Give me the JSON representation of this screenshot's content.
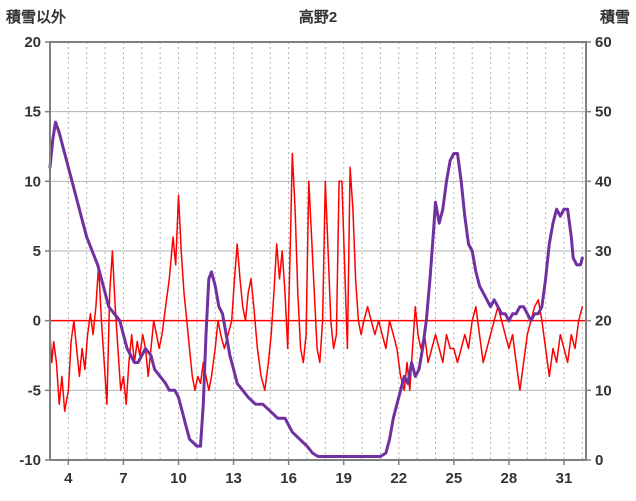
{
  "title": "高野2",
  "left_axis": {
    "label": "積雪以外",
    "ticks": [
      20,
      15,
      10,
      5,
      0,
      -5,
      -10
    ]
  },
  "right_axis": {
    "label": "積雪",
    "ticks": [
      60,
      50,
      40,
      30,
      20,
      10,
      0
    ]
  },
  "x_axis": {
    "ticks": [
      4,
      7,
      10,
      13,
      16,
      19,
      22,
      25,
      28,
      31
    ]
  },
  "colors": {
    "grid": "#b3b3b3",
    "frame": "#808080",
    "zero_line": "#ff0000",
    "red_series": "#ff0000",
    "purple_series": "#7030a0",
    "tick_text": "#333333"
  },
  "chart_data": {
    "type": "line",
    "title": "高野2",
    "xlim": [
      3,
      32.2
    ],
    "left_ylim": [
      -10,
      20
    ],
    "right_ylim": [
      0,
      60
    ],
    "grid": true,
    "legend": "none",
    "xlabel": "",
    "left_ylabel": "積雪以外",
    "right_ylabel": "積雪",
    "series": [
      {
        "name": "積雪以外",
        "axis": "left",
        "color": "#ff0000",
        "width": 1.5,
        "points": [
          [
            3,
            -1
          ],
          [
            3.1,
            -3
          ],
          [
            3.2,
            -1.5
          ],
          [
            3.35,
            -3
          ],
          [
            3.5,
            -6
          ],
          [
            3.65,
            -4
          ],
          [
            3.8,
            -6.5
          ],
          [
            4,
            -5
          ],
          [
            4.15,
            -1.5
          ],
          [
            4.3,
            0
          ],
          [
            4.45,
            -2
          ],
          [
            4.6,
            -4
          ],
          [
            4.75,
            -2
          ],
          [
            4.9,
            -3.5
          ],
          [
            5.05,
            -1
          ],
          [
            5.2,
            0.5
          ],
          [
            5.35,
            -1
          ],
          [
            5.5,
            1
          ],
          [
            5.65,
            4
          ],
          [
            5.8,
            0
          ],
          [
            5.95,
            -3
          ],
          [
            6.1,
            -6
          ],
          [
            6.25,
            2
          ],
          [
            6.4,
            5
          ],
          [
            6.55,
            1
          ],
          [
            6.7,
            -2
          ],
          [
            6.85,
            -5
          ],
          [
            7,
            -4
          ],
          [
            7.15,
            -6
          ],
          [
            7.3,
            -3
          ],
          [
            7.45,
            -1
          ],
          [
            7.6,
            -3
          ],
          [
            7.75,
            -1.5
          ],
          [
            7.9,
            -2.5
          ],
          [
            8.05,
            -1
          ],
          [
            8.2,
            -2
          ],
          [
            8.35,
            -4
          ],
          [
            8.5,
            -2
          ],
          [
            8.65,
            0
          ],
          [
            8.8,
            -1
          ],
          [
            8.95,
            -2
          ],
          [
            9.1,
            -1
          ],
          [
            9.3,
            1
          ],
          [
            9.5,
            3
          ],
          [
            9.7,
            6
          ],
          [
            9.85,
            4
          ],
          [
            10,
            9
          ],
          [
            10.15,
            5
          ],
          [
            10.3,
            2
          ],
          [
            10.45,
            0
          ],
          [
            10.6,
            -2
          ],
          [
            10.75,
            -4
          ],
          [
            10.9,
            -5
          ],
          [
            11.05,
            -4
          ],
          [
            11.2,
            -4.5
          ],
          [
            11.35,
            -3
          ],
          [
            11.5,
            -4
          ],
          [
            11.65,
            -5
          ],
          [
            11.8,
            -4
          ],
          [
            12,
            -2
          ],
          [
            12.15,
            0
          ],
          [
            12.3,
            -1
          ],
          [
            12.5,
            -2
          ],
          [
            12.7,
            -1
          ],
          [
            12.9,
            0
          ],
          [
            13.05,
            3
          ],
          [
            13.2,
            5.5
          ],
          [
            13.35,
            3
          ],
          [
            13.5,
            1
          ],
          [
            13.65,
            0
          ],
          [
            13.8,
            2
          ],
          [
            13.95,
            3
          ],
          [
            14.1,
            1
          ],
          [
            14.3,
            -2
          ],
          [
            14.5,
            -4
          ],
          [
            14.7,
            -5
          ],
          [
            14.9,
            -3
          ],
          [
            15.05,
            -1
          ],
          [
            15.2,
            2
          ],
          [
            15.35,
            5.5
          ],
          [
            15.5,
            3
          ],
          [
            15.65,
            5
          ],
          [
            15.8,
            2
          ],
          [
            15.95,
            -2
          ],
          [
            16.1,
            6
          ],
          [
            16.2,
            12
          ],
          [
            16.35,
            8
          ],
          [
            16.5,
            2
          ],
          [
            16.65,
            -2
          ],
          [
            16.8,
            -3
          ],
          [
            16.95,
            -1
          ],
          [
            17.1,
            10
          ],
          [
            17.25,
            6
          ],
          [
            17.4,
            2
          ],
          [
            17.55,
            -2
          ],
          [
            17.7,
            -3
          ],
          [
            17.85,
            0
          ],
          [
            18,
            10
          ],
          [
            18.15,
            5
          ],
          [
            18.3,
            0
          ],
          [
            18.45,
            -2
          ],
          [
            18.6,
            -1
          ],
          [
            18.75,
            10
          ],
          [
            18.9,
            10
          ],
          [
            19.05,
            4
          ],
          [
            19.2,
            -2
          ],
          [
            19.35,
            11
          ],
          [
            19.5,
            8
          ],
          [
            19.65,
            3
          ],
          [
            19.8,
            0
          ],
          [
            19.95,
            -1
          ],
          [
            20.1,
            0
          ],
          [
            20.3,
            1
          ],
          [
            20.5,
            0
          ],
          [
            20.7,
            -1
          ],
          [
            20.9,
            0
          ],
          [
            21.1,
            -1
          ],
          [
            21.3,
            -2
          ],
          [
            21.5,
            0
          ],
          [
            21.7,
            -1
          ],
          [
            21.9,
            -2
          ],
          [
            22.1,
            -4
          ],
          [
            22.3,
            -5
          ],
          [
            22.45,
            -3
          ],
          [
            22.6,
            -5
          ],
          [
            22.75,
            -2
          ],
          [
            22.9,
            1
          ],
          [
            23.05,
            -1
          ],
          [
            23.2,
            -2
          ],
          [
            23.4,
            -1
          ],
          [
            23.6,
            -3
          ],
          [
            23.8,
            -2
          ],
          [
            24,
            -1
          ],
          [
            24.2,
            -2
          ],
          [
            24.4,
            -3
          ],
          [
            24.6,
            -1
          ],
          [
            24.8,
            -2
          ],
          [
            25,
            -2
          ],
          [
            25.2,
            -3
          ],
          [
            25.4,
            -2
          ],
          [
            25.6,
            -1
          ],
          [
            25.8,
            -2
          ],
          [
            26,
            0
          ],
          [
            26.2,
            1
          ],
          [
            26.4,
            -1
          ],
          [
            26.6,
            -3
          ],
          [
            26.8,
            -2
          ],
          [
            27,
            -1
          ],
          [
            27.2,
            0
          ],
          [
            27.4,
            1
          ],
          [
            27.6,
            0
          ],
          [
            27.8,
            -1
          ],
          [
            28,
            -2
          ],
          [
            28.2,
            -1
          ],
          [
            28.4,
            -3
          ],
          [
            28.6,
            -5
          ],
          [
            28.8,
            -3
          ],
          [
            29,
            -1
          ],
          [
            29.2,
            0
          ],
          [
            29.4,
            1
          ],
          [
            29.6,
            1.5
          ],
          [
            29.8,
            0
          ],
          [
            30,
            -2
          ],
          [
            30.2,
            -4
          ],
          [
            30.4,
            -2
          ],
          [
            30.6,
            -3
          ],
          [
            30.8,
            -1
          ],
          [
            31,
            -2
          ],
          [
            31.2,
            -3
          ],
          [
            31.4,
            -1
          ],
          [
            31.6,
            -2
          ],
          [
            31.8,
            0
          ],
          [
            32,
            1
          ]
        ]
      },
      {
        "name": "積雪",
        "axis": "right",
        "color": "#7030a0",
        "width": 3,
        "points": [
          [
            3,
            42
          ],
          [
            3.15,
            46
          ],
          [
            3.3,
            48.5
          ],
          [
            3.5,
            47
          ],
          [
            3.8,
            44
          ],
          [
            4.1,
            41
          ],
          [
            4.4,
            38
          ],
          [
            4.7,
            35
          ],
          [
            5,
            32
          ],
          [
            5.3,
            30
          ],
          [
            5.6,
            28
          ],
          [
            5.8,
            26
          ],
          [
            6,
            24
          ],
          [
            6.2,
            22
          ],
          [
            6.5,
            21
          ],
          [
            6.8,
            20
          ],
          [
            7,
            18
          ],
          [
            7.2,
            16
          ],
          [
            7.4,
            15
          ],
          [
            7.6,
            14
          ],
          [
            7.8,
            14
          ],
          [
            8,
            15
          ],
          [
            8.2,
            16
          ],
          [
            8.5,
            15
          ],
          [
            8.7,
            13
          ],
          [
            9,
            12
          ],
          [
            9.3,
            11
          ],
          [
            9.5,
            10
          ],
          [
            9.8,
            10
          ],
          [
            10,
            9
          ],
          [
            10.2,
            7
          ],
          [
            10.4,
            5
          ],
          [
            10.6,
            3
          ],
          [
            10.8,
            2.5
          ],
          [
            11,
            2
          ],
          [
            11.2,
            2
          ],
          [
            11.35,
            8
          ],
          [
            11.5,
            18
          ],
          [
            11.65,
            26
          ],
          [
            11.8,
            27
          ],
          [
            12,
            25
          ],
          [
            12.2,
            22
          ],
          [
            12.4,
            21
          ],
          [
            12.6,
            18
          ],
          [
            12.8,
            15
          ],
          [
            13,
            13
          ],
          [
            13.2,
            11
          ],
          [
            13.5,
            10
          ],
          [
            13.8,
            9
          ],
          [
            14.2,
            8
          ],
          [
            14.6,
            8
          ],
          [
            15,
            7
          ],
          [
            15.4,
            6
          ],
          [
            15.8,
            6
          ],
          [
            16.2,
            4
          ],
          [
            16.6,
            3
          ],
          [
            17,
            2
          ],
          [
            17.3,
            1
          ],
          [
            17.6,
            0.5
          ],
          [
            18,
            0.5
          ],
          [
            18.5,
            0.5
          ],
          [
            19,
            0.5
          ],
          [
            19.5,
            0.5
          ],
          [
            20,
            0.5
          ],
          [
            20.5,
            0.5
          ],
          [
            21,
            0.5
          ],
          [
            21.3,
            1
          ],
          [
            21.5,
            3
          ],
          [
            21.7,
            6
          ],
          [
            21.9,
            8
          ],
          [
            22.1,
            10
          ],
          [
            22.3,
            12
          ],
          [
            22.5,
            11
          ],
          [
            22.7,
            14
          ],
          [
            22.9,
            12
          ],
          [
            23.1,
            13
          ],
          [
            23.3,
            16
          ],
          [
            23.5,
            20
          ],
          [
            23.7,
            26
          ],
          [
            23.9,
            33
          ],
          [
            24,
            37
          ],
          [
            24.2,
            34
          ],
          [
            24.4,
            36
          ],
          [
            24.6,
            40
          ],
          [
            24.8,
            43
          ],
          [
            25,
            44
          ],
          [
            25.2,
            44
          ],
          [
            25.4,
            40
          ],
          [
            25.6,
            35
          ],
          [
            25.8,
            31
          ],
          [
            26,
            30
          ],
          [
            26.2,
            27
          ],
          [
            26.4,
            25
          ],
          [
            26.6,
            24
          ],
          [
            26.8,
            23
          ],
          [
            27,
            22
          ],
          [
            27.2,
            23
          ],
          [
            27.4,
            22
          ],
          [
            27.6,
            21
          ],
          [
            27.8,
            21
          ],
          [
            28,
            20
          ],
          [
            28.2,
            21
          ],
          [
            28.4,
            21
          ],
          [
            28.6,
            22
          ],
          [
            28.8,
            22
          ],
          [
            29,
            21
          ],
          [
            29.2,
            20
          ],
          [
            29.4,
            21
          ],
          [
            29.6,
            21
          ],
          [
            29.8,
            22
          ],
          [
            30,
            26
          ],
          [
            30.2,
            31
          ],
          [
            30.4,
            34
          ],
          [
            30.6,
            36
          ],
          [
            30.8,
            35
          ],
          [
            31,
            36
          ],
          [
            31.2,
            36
          ],
          [
            31.4,
            32
          ],
          [
            31.5,
            29
          ],
          [
            31.7,
            28
          ],
          [
            31.9,
            28
          ],
          [
            32,
            29
          ]
        ]
      }
    ]
  }
}
